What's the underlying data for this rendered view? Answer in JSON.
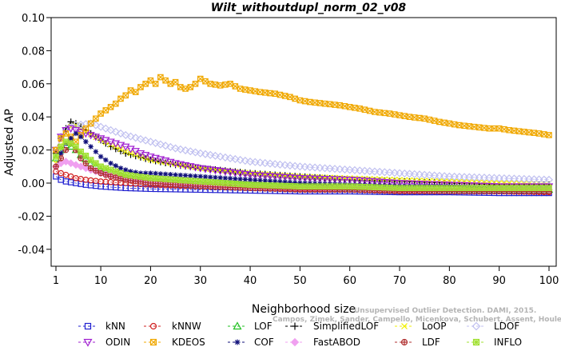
{
  "chart_data": {
    "type": "line",
    "title": "Wilt_withoutdupl_norm_02_v08",
    "xlabel": "Neighborhood size",
    "ylabel": "Adjusted AP",
    "xlim": [
      1,
      100
    ],
    "ylim": [
      -0.05,
      0.1
    ],
    "xticks": [
      1,
      10,
      20,
      30,
      40,
      50,
      60,
      70,
      80,
      90,
      100
    ],
    "yticks": [
      -0.04,
      -0.02,
      0.0,
      0.02,
      0.04,
      0.06,
      0.08,
      0.1
    ],
    "ytick_labels": [
      "-0.04",
      "-0.02",
      "0.00",
      "0.02",
      "0.04",
      "0.06",
      "0.08",
      "0.10"
    ],
    "grid": false,
    "legend_position": "bottom",
    "watermark_lines": [
      "Unsupervised Outlier Detection. DAMI, 2015.",
      "Campos, Zimek, Sander, Campello, Micenkova, Schubert, Assent, Houle"
    ],
    "series": [
      {
        "name": "kNN",
        "color": "#2020d0",
        "marker": "square",
        "x": [
          1,
          2,
          3,
          5,
          7,
          10,
          15,
          20,
          30,
          40,
          50,
          60,
          70,
          80,
          90,
          100
        ],
        "y": [
          0.004,
          0.002,
          0.001,
          0.0,
          -0.001,
          -0.002,
          -0.003,
          -0.0035,
          -0.004,
          -0.0045,
          -0.005,
          -0.005,
          -0.0055,
          -0.0055,
          -0.006,
          -0.006
        ]
      },
      {
        "name": "kNNW",
        "color": "#d02020",
        "marker": "circle",
        "x": [
          1,
          2,
          3,
          5,
          7,
          10,
          15,
          20,
          30,
          40,
          50,
          60,
          70,
          80,
          90,
          100
        ],
        "y": [
          0.007,
          0.006,
          0.005,
          0.003,
          0.002,
          0.001,
          0.0,
          -0.001,
          -0.002,
          -0.003,
          -0.0035,
          -0.004,
          -0.0045,
          -0.005,
          -0.005,
          -0.0055
        ]
      },
      {
        "name": "LOF",
        "color": "#20c020",
        "marker": "triangle-up",
        "x": [
          1,
          2,
          3,
          4,
          5,
          6,
          8,
          10,
          15,
          20,
          30,
          40,
          50,
          60,
          70,
          80,
          90,
          100
        ],
        "y": [
          0.015,
          0.02,
          0.023,
          0.022,
          0.02,
          0.017,
          0.012,
          0.008,
          0.004,
          0.002,
          0.0,
          -0.001,
          -0.002,
          -0.003,
          -0.003,
          -0.004,
          -0.004,
          -0.004
        ]
      },
      {
        "name": "SimplifiedLOF",
        "color": "#000000",
        "marker": "plus",
        "x": [
          1,
          2,
          3,
          4,
          5,
          6,
          7,
          8,
          10,
          12,
          15,
          20,
          25,
          30,
          40,
          50,
          60,
          70,
          80,
          90,
          100
        ],
        "y": [
          0.018,
          0.027,
          0.033,
          0.037,
          0.036,
          0.034,
          0.032,
          0.03,
          0.026,
          0.022,
          0.018,
          0.014,
          0.011,
          0.009,
          0.006,
          0.004,
          0.002,
          0.001,
          0.0,
          -0.001,
          -0.001
        ]
      },
      {
        "name": "LoOP",
        "color": "#f0f000",
        "marker": "x",
        "x": [
          1,
          2,
          3,
          4,
          5,
          7,
          10,
          15,
          20,
          30,
          40,
          50,
          60,
          70,
          80,
          90,
          100
        ],
        "y": [
          0.012,
          0.022,
          0.03,
          0.034,
          0.035,
          0.031,
          0.026,
          0.019,
          0.014,
          0.009,
          0.006,
          0.004,
          0.003,
          0.002,
          0.001,
          0.0,
          0.0
        ]
      },
      {
        "name": "LDOF",
        "color": "#c0c0f0",
        "marker": "diamond",
        "x": [
          1,
          2,
          3,
          5,
          8,
          10,
          12,
          15,
          20,
          25,
          30,
          40,
          50,
          60,
          70,
          80,
          90,
          100
        ],
        "y": [
          0.02,
          0.028,
          0.032,
          0.035,
          0.036,
          0.034,
          0.032,
          0.029,
          0.025,
          0.021,
          0.018,
          0.013,
          0.01,
          0.008,
          0.006,
          0.004,
          0.003,
          0.002
        ]
      },
      {
        "name": "ODIN",
        "color": "#a020d0",
        "marker": "triangle-down",
        "x": [
          1,
          2,
          3,
          4,
          5,
          6,
          8,
          10,
          12,
          15,
          18,
          20,
          25,
          30,
          40,
          50,
          60,
          70,
          80,
          90,
          100
        ],
        "y": [
          0.02,
          0.028,
          0.032,
          0.033,
          0.032,
          0.031,
          0.029,
          0.027,
          0.025,
          0.022,
          0.018,
          0.016,
          0.012,
          0.009,
          0.005,
          0.003,
          0.002,
          0.0,
          -0.001,
          -0.002,
          -0.002
        ]
      },
      {
        "name": "KDEOS",
        "color": "#f0a800",
        "marker": "square-x",
        "x": [
          1,
          2,
          3,
          4,
          5,
          6,
          7,
          8,
          9,
          10,
          11,
          12,
          13,
          14,
          15,
          16,
          17,
          18,
          19,
          20,
          21,
          22,
          23,
          24,
          25,
          26,
          27,
          28,
          29,
          30,
          32,
          34,
          36,
          38,
          40,
          42,
          45,
          48,
          50,
          52,
          55,
          58,
          60,
          62,
          65,
          68,
          70,
          72,
          75,
          78,
          80,
          82,
          85,
          88,
          90,
          92,
          95,
          98,
          100
        ],
        "y": [
          0.02,
          0.027,
          0.03,
          0.028,
          0.025,
          0.029,
          0.033,
          0.036,
          0.039,
          0.042,
          0.044,
          0.046,
          0.048,
          0.051,
          0.053,
          0.056,
          0.055,
          0.058,
          0.06,
          0.062,
          0.06,
          0.064,
          0.062,
          0.06,
          0.061,
          0.058,
          0.057,
          0.058,
          0.06,
          0.063,
          0.06,
          0.059,
          0.06,
          0.057,
          0.056,
          0.055,
          0.054,
          0.052,
          0.05,
          0.049,
          0.048,
          0.047,
          0.046,
          0.045,
          0.043,
          0.042,
          0.041,
          0.04,
          0.039,
          0.037,
          0.036,
          0.035,
          0.034,
          0.033,
          0.033,
          0.032,
          0.031,
          0.03,
          0.029
        ]
      },
      {
        "name": "COF",
        "color": "#10107a",
        "marker": "asterisk",
        "x": [
          1,
          2,
          3,
          4,
          5,
          6,
          7,
          8,
          9,
          10,
          12,
          14,
          16,
          18,
          20,
          25,
          30,
          35,
          40,
          50,
          60,
          70,
          80,
          90,
          100
        ],
        "y": [
          0.01,
          0.018,
          0.024,
          0.027,
          0.03,
          0.028,
          0.025,
          0.022,
          0.019,
          0.016,
          0.012,
          0.009,
          0.007,
          0.006,
          0.006,
          0.005,
          0.004,
          0.003,
          0.002,
          0.0,
          -0.001,
          -0.002,
          -0.002,
          -0.003,
          -0.003
        ]
      },
      {
        "name": "FastABOD",
        "color": "#f0a0f0",
        "marker": "diamond-filled",
        "x": [
          1,
          2,
          3,
          4,
          5,
          7,
          10,
          15,
          20,
          30,
          40,
          50,
          60,
          70,
          80,
          90,
          100
        ],
        "y": [
          0.01,
          0.012,
          0.013,
          0.012,
          0.011,
          0.009,
          0.006,
          0.003,
          0.001,
          -0.001,
          -0.002,
          -0.003,
          -0.003,
          -0.004,
          -0.004,
          -0.004,
          -0.004
        ]
      },
      {
        "name": "LDF",
        "color": "#b03030",
        "marker": "circle-plus",
        "x": [
          1,
          2,
          3,
          4,
          5,
          6,
          7,
          8,
          10,
          12,
          15,
          20,
          30,
          40,
          50,
          60,
          70,
          80,
          90,
          100
        ],
        "y": [
          0.01,
          0.015,
          0.02,
          0.024,
          0.02,
          0.015,
          0.012,
          0.009,
          0.006,
          0.004,
          0.002,
          0.0,
          -0.002,
          -0.003,
          -0.004,
          -0.004,
          -0.005,
          -0.005,
          -0.005,
          -0.005
        ]
      },
      {
        "name": "INFLO",
        "color": "#a0e030",
        "marker": "square-star",
        "x": [
          1,
          2,
          3,
          4,
          5,
          6,
          8,
          10,
          15,
          20,
          30,
          40,
          50,
          60,
          70,
          80,
          90,
          100
        ],
        "y": [
          0.016,
          0.022,
          0.025,
          0.024,
          0.022,
          0.019,
          0.014,
          0.01,
          0.005,
          0.003,
          0.001,
          -0.001,
          -0.002,
          -0.002,
          -0.003,
          -0.003,
          -0.003,
          -0.003
        ]
      }
    ]
  }
}
